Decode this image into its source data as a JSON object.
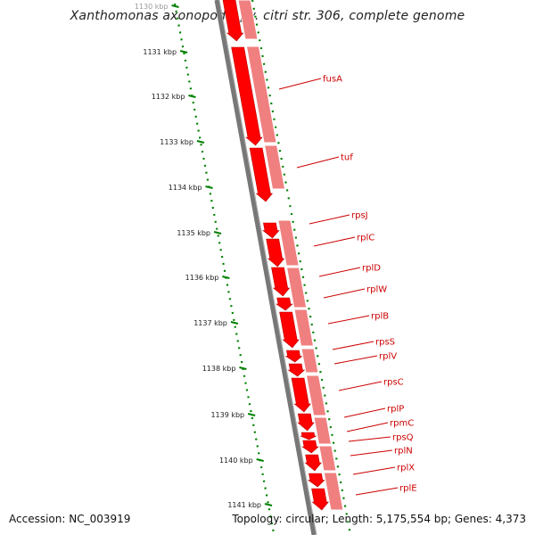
{
  "title": "Xanthomonas axonopodis pv. citri str. 306, complete genome",
  "footer": {
    "accession": "Accession: NC_003919",
    "summary": "Topology: circular; Length: 5,175,554 bp; Genes: 4,373"
  },
  "ruler_ticks": [
    {
      "label": "1130 kbp",
      "faded": true
    },
    {
      "label": "1131 kbp"
    },
    {
      "label": "1132 kbp"
    },
    {
      "label": "1133 kbp"
    },
    {
      "label": "1134 kbp"
    },
    {
      "label": "1135 kbp"
    },
    {
      "label": "1136 kbp"
    },
    {
      "label": "1137 kbp"
    },
    {
      "label": "1138 kbp"
    },
    {
      "label": "1139 kbp"
    },
    {
      "label": "1140 kbp"
    },
    {
      "label": "1141 kbp"
    }
  ],
  "gene_labels": [
    "fusA",
    "tuf",
    "rpsJ",
    "rplC",
    "rplD",
    "rplW",
    "rplB",
    "rpsS",
    "rplV",
    "rpsC",
    "rplP",
    "rpmC",
    "rpsQ",
    "rplN",
    "rplX",
    "rplE"
  ],
  "colors": {
    "gene_fill": "#ff0000",
    "gene_stroke": "#bb0000",
    "cds_track_fill": "#f08080",
    "backbone": "#777777",
    "ruler_dots": "#008000",
    "label_text": "#cc0000",
    "leader_line": "#cc0000"
  }
}
